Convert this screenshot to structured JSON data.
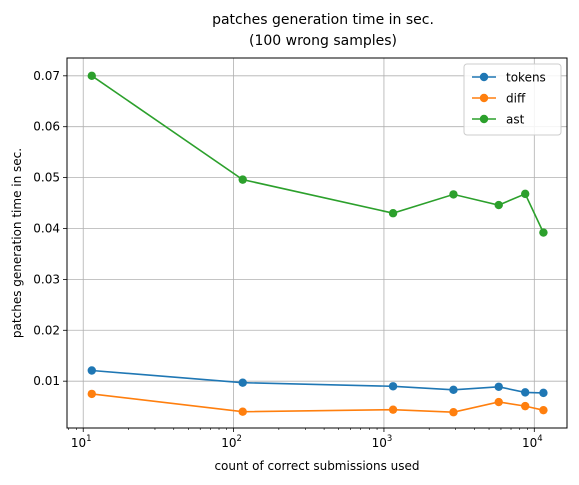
{
  "chart_data": {
    "type": "line",
    "title_line1": "patches generation time in sec.",
    "title_line2": "(100 wrong samples)",
    "xlabel": "count of correct submissions used",
    "ylabel": "patches generation time in sec.",
    "xscale": "log",
    "xlim": [
      7.8,
      16500
    ],
    "ylim": [
      0.0008,
      0.0735
    ],
    "grid": true,
    "legend_position": "top-right",
    "x_ticks": [
      {
        "value": 10,
        "base": "10",
        "exp": "1"
      },
      {
        "value": 100,
        "base": "10",
        "exp": "2"
      },
      {
        "value": 1000,
        "base": "10",
        "exp": "3"
      },
      {
        "value": 10000,
        "base": "10",
        "exp": "4"
      }
    ],
    "y_ticks": [
      {
        "value": 0.01,
        "label": "0.01"
      },
      {
        "value": 0.02,
        "label": "0.02"
      },
      {
        "value": 0.03,
        "label": "0.03"
      },
      {
        "value": 0.04,
        "label": "0.04"
      },
      {
        "value": 0.05,
        "label": "0.05"
      },
      {
        "value": 0.06,
        "label": "0.06"
      },
      {
        "value": 0.07,
        "label": "0.07"
      }
    ],
    "x": [
      11.4,
      115,
      1150,
      2900,
      5800,
      8700,
      11500
    ],
    "series": [
      {
        "name": "tokens",
        "color": "#1f77b4",
        "values": [
          0.0121,
          0.0097,
          0.009,
          0.0083,
          0.0089,
          0.0078,
          0.0077
        ]
      },
      {
        "name": "diff",
        "color": "#ff7f0e",
        "values": [
          0.0075,
          0.004,
          0.0044,
          0.0039,
          0.0059,
          0.0051,
          0.0043
        ]
      },
      {
        "name": "ast",
        "color": "#2ca02c",
        "values": [
          0.07,
          0.0496,
          0.043,
          0.0467,
          0.0446,
          0.0468,
          0.0392
        ]
      }
    ]
  }
}
